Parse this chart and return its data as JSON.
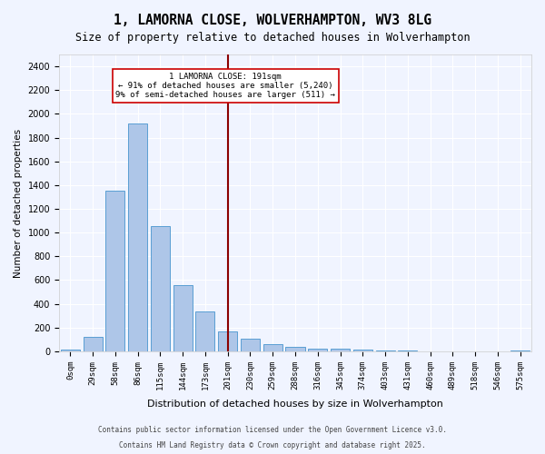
{
  "title": "1, LAMORNA CLOSE, WOLVERHAMPTON, WV3 8LG",
  "subtitle": "Size of property relative to detached houses in Wolverhampton",
  "xlabel": "Distribution of detached houses by size in Wolverhampton",
  "ylabel": "Number of detached properties",
  "bar_labels": [
    "0sqm",
    "29sqm",
    "58sqm",
    "86sqm",
    "115sqm",
    "144sqm",
    "173sqm",
    "201sqm",
    "230sqm",
    "259sqm",
    "288sqm",
    "316sqm",
    "345sqm",
    "374sqm",
    "403sqm",
    "431sqm",
    "460sqm",
    "489sqm",
    "518sqm",
    "546sqm",
    "575sqm"
  ],
  "bar_values": [
    15,
    125,
    1350,
    1920,
    1055,
    560,
    335,
    170,
    110,
    60,
    35,
    25,
    25,
    15,
    5,
    5,
    0,
    0,
    0,
    0,
    10
  ],
  "bar_color": "#aec6e8",
  "bar_edge_color": "#5a9fd4",
  "property_size": 191,
  "property_label": "1 LAMORNA CLOSE: 191sqm",
  "pct_smaller": "91% of detached houses are smaller (5,240)",
  "pct_larger": "9% of semi-detached houses are larger (511)",
  "vline_x_index": 7,
  "vline_color": "#8b0000",
  "annotation_box_color": "#ffeeee",
  "annotation_border_color": "#cc0000",
  "ylim": [
    0,
    2500
  ],
  "yticks": [
    0,
    200,
    400,
    600,
    800,
    1000,
    1200,
    1400,
    1600,
    1800,
    2000,
    2200,
    2400
  ],
  "background_color": "#f0f4ff",
  "grid_color": "#ffffff",
  "footer1": "Contains HM Land Registry data © Crown copyright and database right 2025.",
  "footer2": "Contains public sector information licensed under the Open Government Licence v3.0."
}
